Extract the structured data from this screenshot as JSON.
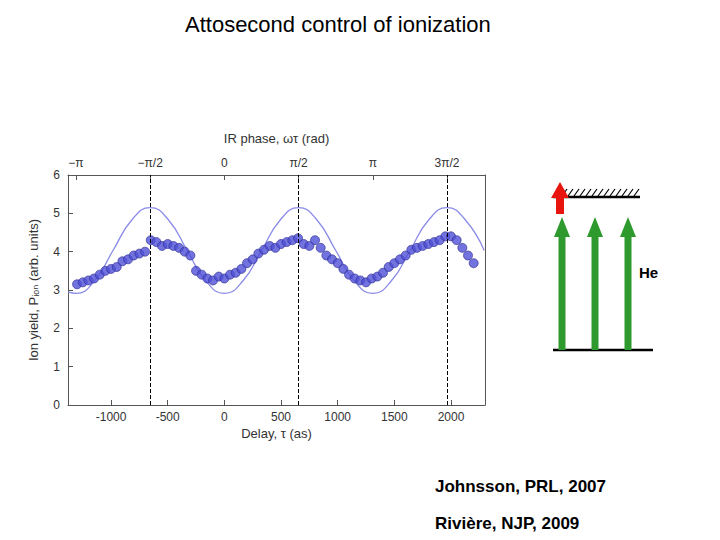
{
  "title": "Attosecond control of ionization",
  "chart_data": {
    "type": "scatter",
    "x_label": "Delay, τ (as)",
    "y_label": "Ion yield, Pᵢₒₙ (arb. units)",
    "x2_label": "IR phase, ωτ (rad)",
    "xlim": [
      -1380,
      2300
    ],
    "xticks": [
      -1000,
      -500,
      0,
      500,
      1000,
      1500,
      2000
    ],
    "x2ticks": [
      {
        "value": -1310,
        "label": "−π"
      },
      {
        "value": -655,
        "label": "−π/2"
      },
      {
        "value": 0,
        "label": "0"
      },
      {
        "value": 655,
        "label": "π/2"
      },
      {
        "value": 1310,
        "label": "π"
      },
      {
        "value": 1965,
        "label": "3π/2"
      }
    ],
    "ylim": [
      0,
      6
    ],
    "yticks": [
      0,
      1,
      2,
      3,
      4,
      5,
      6
    ],
    "dashed_lines": [
      -655,
      655,
      1965
    ],
    "grid": false,
    "series": [
      {
        "type": "scatter",
        "marker": "circle",
        "color": "#5050d8",
        "x": [
          -1300,
          -1250,
          -1200,
          -1150,
          -1100,
          -1050,
          -1000,
          -950,
          -900,
          -850,
          -800,
          -750,
          -700,
          -650,
          -600,
          -550,
          -500,
          -450,
          -400,
          -350,
          -300,
          -250,
          -200,
          -150,
          -100,
          -50,
          0,
          50,
          100,
          150,
          200,
          250,
          300,
          350,
          400,
          450,
          500,
          550,
          600,
          650,
          700,
          750,
          800,
          850,
          900,
          950,
          1000,
          1050,
          1100,
          1150,
          1200,
          1250,
          1300,
          1350,
          1400,
          1450,
          1500,
          1550,
          1600,
          1650,
          1700,
          1750,
          1800,
          1850,
          1900,
          1950,
          2000,
          2050,
          2100,
          2150,
          2200
        ],
        "values": [
          3.15,
          3.2,
          3.25,
          3.3,
          3.4,
          3.5,
          3.55,
          3.6,
          3.75,
          3.8,
          3.9,
          3.95,
          4.0,
          4.3,
          4.25,
          4.15,
          4.2,
          4.15,
          4.1,
          4.0,
          3.9,
          3.5,
          3.4,
          3.3,
          3.25,
          3.35,
          3.3,
          3.4,
          3.45,
          3.55,
          3.7,
          3.8,
          3.95,
          4.05,
          4.15,
          4.1,
          4.2,
          4.25,
          4.3,
          4.35,
          4.2,
          4.15,
          4.3,
          4.1,
          3.9,
          3.8,
          3.7,
          3.55,
          3.4,
          3.3,
          3.25,
          3.2,
          3.3,
          3.35,
          3.45,
          3.6,
          3.7,
          3.8,
          3.9,
          4.05,
          4.1,
          4.15,
          4.2,
          4.25,
          4.3,
          4.4,
          4.4,
          4.3,
          4.1,
          3.9,
          3.7
        ]
      },
      {
        "type": "line",
        "line_style": "solid",
        "color": "#8a8ae8",
        "x": [
          -1380,
          -1310,
          -1146,
          -983,
          -819,
          -655,
          -491,
          -328,
          -164,
          0,
          164,
          328,
          491,
          655,
          819,
          983,
          1146,
          1310,
          1474,
          1638,
          1801,
          1965,
          2129,
          2293
        ],
        "values": [
          2.95,
          2.91,
          3.24,
          4.03,
          4.82,
          5.15,
          4.82,
          4.03,
          3.24,
          2.91,
          3.24,
          4.03,
          4.82,
          5.15,
          4.82,
          4.03,
          3.24,
          2.91,
          3.24,
          4.03,
          4.82,
          5.15,
          4.82,
          4.03
        ]
      }
    ]
  },
  "diagram": {
    "label": "He"
  },
  "references": [
    "Johnsson, PRL, 2007",
    "Rivière, NJP, 2009"
  ]
}
